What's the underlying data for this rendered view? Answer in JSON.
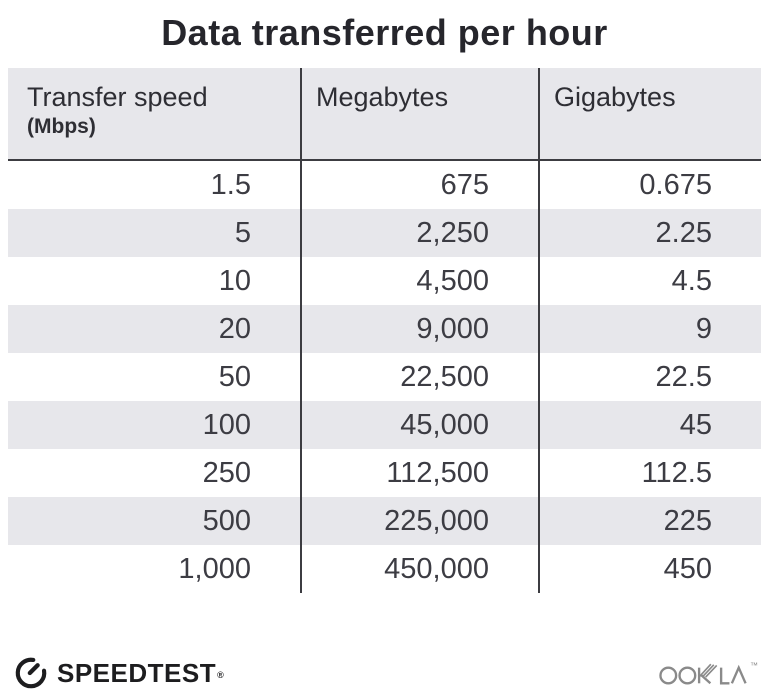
{
  "title": "Data transferred per hour",
  "colors": {
    "bg": "#ffffff",
    "ink": "#26262c",
    "header-bg": "#e7e7eb",
    "header-text": "#2e2e34",
    "stripe": "#e7e7eb",
    "line": "#3c3c41",
    "data-text": "#3c3c43",
    "speedtest": "#1d1d1f",
    "ookla": "#8a8a8a"
  },
  "table": {
    "headers": [
      {
        "label": "Transfer speed",
        "sublabel": "(Mbps)"
      },
      {
        "label": "Megabytes"
      },
      {
        "label": "Gigabytes"
      }
    ],
    "rows": [
      [
        "1.5",
        "675",
        "0.675"
      ],
      [
        "5",
        "2,250",
        "2.25"
      ],
      [
        "10",
        "4,500",
        "4.5"
      ],
      [
        "20",
        "9,000",
        "9"
      ],
      [
        "50",
        "22,500",
        "22.5"
      ],
      [
        "100",
        "45,000",
        "45"
      ],
      [
        "250",
        "112,500",
        "112.5"
      ],
      [
        "500",
        "225,000",
        "225"
      ],
      [
        "1,000",
        "450,000",
        "450"
      ]
    ]
  },
  "chart_data": {
    "type": "table",
    "title": "Data transferred per hour",
    "columns": [
      "Transfer speed (Mbps)",
      "Megabytes",
      "Gigabytes"
    ],
    "rows": [
      [
        1.5,
        675,
        0.675
      ],
      [
        5,
        2250,
        2.25
      ],
      [
        10,
        4500,
        4.5
      ],
      [
        20,
        9000,
        9
      ],
      [
        50,
        22500,
        22.5
      ],
      [
        100,
        45000,
        45
      ],
      [
        250,
        112500,
        112.5
      ],
      [
        500,
        225000,
        225
      ],
      [
        1000,
        450000,
        450
      ]
    ],
    "notes": "Rows alternate white and light-gray stripes; dark vertical column dividers and a dark rule under the header"
  },
  "icons": {
    "speedtest": "speedometer-icon",
    "ookla": "ookla-wordmark"
  },
  "footer": {
    "speedtest_label": "SPEEDTEST",
    "speedtest_reg": "®",
    "ookla_label": "OOKLA",
    "ookla_tm": "™"
  }
}
